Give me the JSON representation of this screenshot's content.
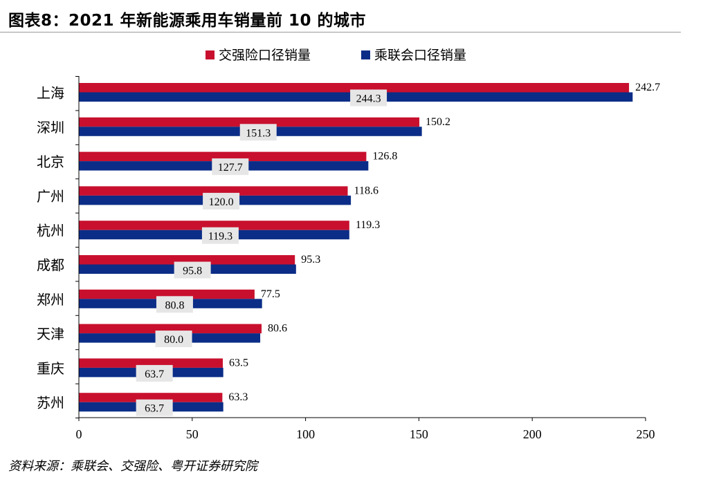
{
  "title": "图表8：2021 年新能源乘用车销量前 10 的城市",
  "source": "资料来源：乘联会、交强险、粤开证券研究院",
  "chart_data": {
    "type": "bar",
    "orientation": "horizontal",
    "categories": [
      "上海",
      "深圳",
      "北京",
      "广州",
      "杭州",
      "成都",
      "郑州",
      "天津",
      "重庆",
      "苏州"
    ],
    "series": [
      {
        "name": "交强险口径销量",
        "color": "#c8102e",
        "values": [
          242.7,
          150.2,
          126.8,
          118.6,
          119.3,
          95.3,
          77.5,
          80.6,
          63.5,
          63.3
        ]
      },
      {
        "name": "乘联会口径销量",
        "color": "#0b2d87",
        "values": [
          244.3,
          151.3,
          127.7,
          120.0,
          119.3,
          95.8,
          80.8,
          80.0,
          63.7,
          63.7
        ]
      }
    ],
    "value_labels": [
      [
        "242.7",
        "150.2",
        "126.8",
        "118.6",
        "119.3",
        "95.3",
        "77.5",
        "80.6",
        "63.5",
        "63.3"
      ],
      [
        "244.3",
        "151.3",
        "127.7",
        "120.0",
        "119.3",
        "95.8",
        "80.8",
        "80.0",
        "63.7",
        "63.7"
      ]
    ],
    "xlim": [
      0,
      250
    ],
    "xticks": [
      0,
      50,
      100,
      150,
      200,
      250
    ],
    "legend_position": "top-center",
    "grid": false
  }
}
